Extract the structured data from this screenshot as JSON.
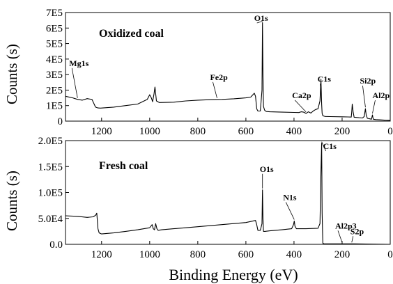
{
  "chart_data": [
    {
      "type": "line",
      "title": "Oxidized coal",
      "ylabel": "Counts (s)",
      "xlabel": "",
      "x_reversed": true,
      "xlim": [
        1350,
        0
      ],
      "ylim": [
        0,
        700000
      ],
      "x_ticks": [
        1200,
        1000,
        800,
        600,
        400,
        200,
        0
      ],
      "x_tick_labels": [
        "1200",
        "1000",
        "800",
        "600",
        "400",
        "200",
        "0"
      ],
      "y_ticks": [
        0,
        100000,
        200000,
        300000,
        400000,
        500000,
        600000,
        700000
      ],
      "y_tick_labels": [
        "0",
        "1E5",
        "2E5",
        "3E5",
        "4E5",
        "5E5",
        "6E5",
        "7E5"
      ],
      "series": [
        {
          "x": [
            1350,
            1320,
            1300,
            1280,
            1260,
            1240,
            1225,
            1215,
            1205,
            1150,
            1100,
            1050,
            1010,
            1000,
            993,
            988,
            982,
            978,
            972,
            966,
            960,
            900,
            850,
            800,
            750,
            700,
            650,
            600,
            580,
            565,
            560,
            555,
            550,
            540,
            533,
            531,
            529,
            527,
            522,
            515,
            500,
            450,
            400,
            380,
            370,
            360,
            350,
            340,
            330,
            320,
            310,
            300,
            292,
            288,
            285,
            283,
            280,
            275,
            270,
            250,
            200,
            175,
            162,
            160,
            158,
            154,
            150,
            130,
            115,
            108,
            103,
            100,
            95,
            85,
            78,
            74,
            72,
            70,
            60,
            40,
            20,
            0
          ],
          "y": [
            160000,
            150000,
            140000,
            135000,
            145000,
            140000,
            90000,
            85000,
            84000,
            90000,
            100000,
            110000,
            140000,
            170000,
            150000,
            125000,
            175000,
            220000,
            130000,
            125000,
            120000,
            122000,
            130000,
            135000,
            138000,
            140000,
            144000,
            150000,
            155000,
            180000,
            160000,
            80000,
            65000,
            65000,
            200000,
            635000,
            300000,
            95000,
            70000,
            62000,
            60000,
            58000,
            56000,
            55000,
            60000,
            58000,
            50000,
            60000,
            52000,
            65000,
            75000,
            80000,
            130000,
            270000,
            110000,
            50000,
            35000,
            32000,
            30000,
            29000,
            28000,
            27000,
            26000,
            60000,
            110000,
            60000,
            25000,
            22000,
            20000,
            30000,
            80000,
            40000,
            18000,
            15000,
            12000,
            40000,
            25000,
            12000,
            10000,
            8000,
            6000,
            5000
          ],
          "annotations": [
            {
              "label": "Mg1s",
              "x": 1300
            },
            {
              "label": "Fe2p",
              "x": 720
            },
            {
              "label": "O1s",
              "x": 531
            },
            {
              "label": "Ca2p",
              "x": 350
            },
            {
              "label": "C1s",
              "x": 285
            },
            {
              "label": "Si2p",
              "x": 103
            },
            {
              "label": "Al2p",
              "x": 74
            }
          ]
        }
      ]
    },
    {
      "type": "line",
      "title": "Fresh coal",
      "ylabel": "Counts (s)",
      "xlabel": "Binding Energy (eV)",
      "x_reversed": true,
      "xlim": [
        1350,
        0
      ],
      "ylim": [
        0,
        200000
      ],
      "x_ticks": [
        1200,
        1000,
        800,
        600,
        400,
        200,
        0
      ],
      "x_tick_labels": [
        "1200",
        "1000",
        "800",
        "600",
        "400",
        "200",
        "0"
      ],
      "y_ticks": [
        0,
        50000,
        100000,
        150000,
        200000
      ],
      "y_tick_labels": [
        "0.0",
        "5.0E4",
        "1.0E5",
        "1.5E5",
        "2.0E5"
      ],
      "series": [
        {
          "x": [
            1350,
            1300,
            1260,
            1235,
            1225,
            1220,
            1215,
            1210,
            1200,
            1150,
            1100,
            1050,
            1000,
            990,
            985,
            980,
            975,
            970,
            965,
            950,
            900,
            850,
            800,
            750,
            700,
            650,
            600,
            580,
            560,
            555,
            550,
            540,
            533,
            531,
            529,
            527,
            520,
            500,
            450,
            410,
            402,
            399,
            396,
            390,
            350,
            300,
            292,
            288,
            285,
            283,
            280,
            275,
            250,
            200,
            160,
            150,
            100,
            50,
            0
          ],
          "y": [
            55000,
            54000,
            52000,
            53000,
            56000,
            60000,
            30000,
            22000,
            20000,
            22000,
            25000,
            28000,
            32000,
            38000,
            30000,
            28000,
            40000,
            30000,
            27000,
            28000,
            30000,
            32000,
            34000,
            36000,
            38000,
            40000,
            42000,
            44000,
            46000,
            38000,
            27000,
            27000,
            40000,
            105000,
            50000,
            25000,
            25000,
            26000,
            28000,
            30000,
            38000,
            45000,
            35000,
            30000,
            30000,
            31000,
            40000,
            140000,
            195000,
            60000,
            2000,
            1000,
            1000,
            1000,
            1000,
            1000,
            500,
            300,
            0
          ],
          "annotations": [
            {
              "label": "O1s",
              "x": 531
            },
            {
              "label": "N1s",
              "x": 399
            },
            {
              "label": "C1s",
              "x": 285
            },
            {
              "label": "Al2p3",
              "x": 200
            },
            {
              "label": "S2p",
              "x": 160
            }
          ]
        }
      ]
    }
  ]
}
